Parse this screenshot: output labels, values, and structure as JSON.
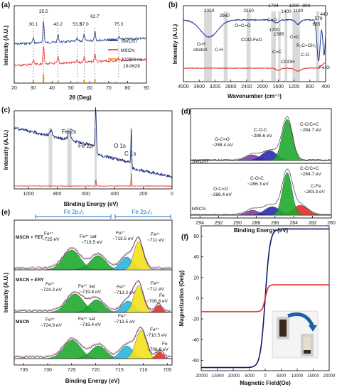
{
  "colors": {
    "blue": "#1f3a93",
    "red": "#e0302b",
    "orange": "#f28c00",
    "navy": "#0a1a6b",
    "gray": "#444444",
    "green": "#1faa2c",
    "cyan": "#27b6e0",
    "yellow": "#f2e21c",
    "purple": "#7a3da8",
    "darkblue": "#2a2ab0",
    "shade": "#d9d9d9"
  },
  "chart_data": [
    {
      "id": "a",
      "panel": "(a)",
      "type": "line",
      "xlabel": "2θ (Deg)",
      "ylabel": "Intensity (A.U.)",
      "xlim": [
        20,
        90
      ],
      "xticks": [
        "20",
        "30",
        "40",
        "50",
        "60",
        "70",
        "80",
        "90"
      ],
      "peak_labels": [
        {
          "x": 30.1,
          "text": "30.1"
        },
        {
          "x": 35.5,
          "text": "35.5"
        },
        {
          "x": 43.2,
          "text": "43.2"
        },
        {
          "x": 53.3,
          "text": "53.3"
        },
        {
          "x": 57.0,
          "text": "57.0"
        },
        {
          "x": 62.7,
          "text": "62.7"
        },
        {
          "x": 75.3,
          "text": "75.3"
        }
      ],
      "legend": [
        "SWCNT",
        "MSCN",
        "JCPDS no.",
        "19-0629"
      ],
      "reference_peaks": [
        {
          "x": 30.1,
          "h": 0.3
        },
        {
          "x": 35.5,
          "h": 1.0
        },
        {
          "x": 43.2,
          "h": 0.22
        },
        {
          "x": 53.3,
          "h": 0.1
        },
        {
          "x": 57.0,
          "h": 0.3
        },
        {
          "x": 62.7,
          "h": 0.4
        },
        {
          "x": 74.0,
          "h": 0.1
        }
      ]
    },
    {
      "id": "b",
      "panel": "(b)",
      "type": "line",
      "xlabel": "Wavenumber (cm⁻¹)",
      "ylabel": "Intensity (A.U.)",
      "xlim": [
        4000,
        400
      ],
      "xticks": [
        "4000",
        "3600",
        "3200",
        "2800",
        "2400",
        "2000",
        "1600",
        "1200",
        "800",
        "400"
      ],
      "band_labels": [
        {
          "x": 3350,
          "text": "3350"
        },
        {
          "x": 2960,
          "text": "2960"
        },
        {
          "x": 2350,
          "text": "2350"
        },
        {
          "x": 1724,
          "text": "1724"
        },
        {
          "x": 1700,
          "text": "1700"
        },
        {
          "x": 1585,
          "text": "1585"
        },
        {
          "x": 1400,
          "text": "1400"
        },
        {
          "x": 1200,
          "text": "1200"
        },
        {
          "x": 1100,
          "text": "1100"
        },
        {
          "x": 890,
          "text": "890"
        },
        {
          "x": 579,
          "text": "579"
        },
        {
          "x": 440,
          "text": "440"
        },
        {
          "x": 635,
          "text": "635"
        }
      ],
      "assignments": [
        "O-H",
        "stretch",
        "C-H",
        "O=C=O",
        "C=O",
        "COO-FeO",
        "C=C",
        "COOH",
        "C=C",
        "R₂C=CH₂",
        "C-O",
        "Fe-O"
      ]
    },
    {
      "id": "c",
      "panel": "(c)",
      "type": "line",
      "xlabel": "Binding Energy (eV)",
      "ylabel": "Intensity (A.U.)",
      "xlim": [
        1100,
        0
      ],
      "xticks": [
        "1000",
        "800",
        "600",
        "400",
        "200",
        "0"
      ],
      "peak_labels": [
        "Fe 2s",
        "Fe 2p",
        "O 1s",
        "C 1s"
      ]
    },
    {
      "id": "d",
      "panel": "(d)",
      "type": "area",
      "xlabel": "Binding Energy (eV)",
      "xlim": [
        295,
        280
      ],
      "xticks": [
        "294",
        "292",
        "290",
        "288",
        "286",
        "284",
        "282",
        "280"
      ],
      "samples": [
        {
          "name": "SWCNT",
          "labels": [
            {
              "text": "C-C/C=C",
              "value": "~284.7 eV"
            },
            {
              "text": "C-O-C",
              "value": "~286.6 eV"
            },
            {
              "text": "O-C=O",
              "value": "~288.4 eV"
            }
          ]
        },
        {
          "name": "MSCN",
          "labels": [
            {
              "text": "C-C/C=C",
              "value": "~284.7 eV"
            },
            {
              "text": "C-O-C",
              "value": "~286.3 eV"
            },
            {
              "text": "O-C=O",
              "value": "~288.4 eV"
            },
            {
              "text": "C-Fe",
              "value": "~283.3 eV"
            }
          ]
        }
      ]
    },
    {
      "id": "e",
      "panel": "(e)",
      "type": "area",
      "xlabel": "Binding Energy (eV)",
      "ylabel": "Intensity (A.U.)",
      "xlim": [
        737,
        704
      ],
      "xticks": [
        "735",
        "730",
        "725",
        "720",
        "715",
        "710",
        "705"
      ],
      "regions": [
        "Fe 2p₁/₂",
        "Fe 2p₃/₂"
      ],
      "samples": [
        {
          "name": "MSCN + TET",
          "labels": [
            {
              "ion": "Fe³⁺",
              "value": "~725 eV"
            },
            {
              "ion": "Fe³⁺ sat",
              "value": "~719.5 eV"
            },
            {
              "ion": "Fe²⁺",
              "value": "~713.5 eV"
            },
            {
              "ion": "Fe³⁺",
              "value": "~711 eV"
            }
          ]
        },
        {
          "name": "MSCN + ERY",
          "labels": [
            {
              "ion": "Fe³⁺",
              "value": "~724.3 eV"
            },
            {
              "ion": "Fe³⁺ sat",
              "value": "~719.8 eV"
            },
            {
              "ion": "Fe²⁺",
              "value": "~713.2 eV"
            },
            {
              "ion": "Fe³⁺",
              "value": "~711 eV"
            },
            {
              "ion": "Fe",
              "value": "~706.8 eV"
            }
          ]
        },
        {
          "name": "MSCN",
          "labels": [
            {
              "ion": "Fe³⁺",
              "value": "~724.9 eV"
            },
            {
              "ion": "Fe³⁺ sat",
              "value": "~719.4 eV"
            },
            {
              "ion": "Fe²⁺",
              "value": "~713.5 eV"
            },
            {
              "ion": "Fe³⁺",
              "value": "~710.5 eV"
            },
            {
              "ion": "Fe",
              "value": "~706.6 eV"
            }
          ]
        }
      ]
    },
    {
      "id": "f",
      "panel": "(f)",
      "type": "line",
      "xlabel": "Magnetic Field(Oe)",
      "ylabel": "Magnetization (Oe/g)",
      "xlim": [
        -20000,
        20000
      ],
      "ylim": [
        -70,
        70
      ],
      "xticks": [
        "-20000",
        "-15000",
        "-10000",
        "-5000",
        "0",
        "5000",
        "10000",
        "15000",
        "20000"
      ],
      "yticks": [
        "-60",
        "-40",
        "-20",
        "0",
        "20",
        "40",
        "60"
      ],
      "series": [
        {
          "color": "#0a1a6b",
          "ms": 67
        },
        {
          "color": "#e0302b",
          "ms": 13
        }
      ]
    }
  ]
}
